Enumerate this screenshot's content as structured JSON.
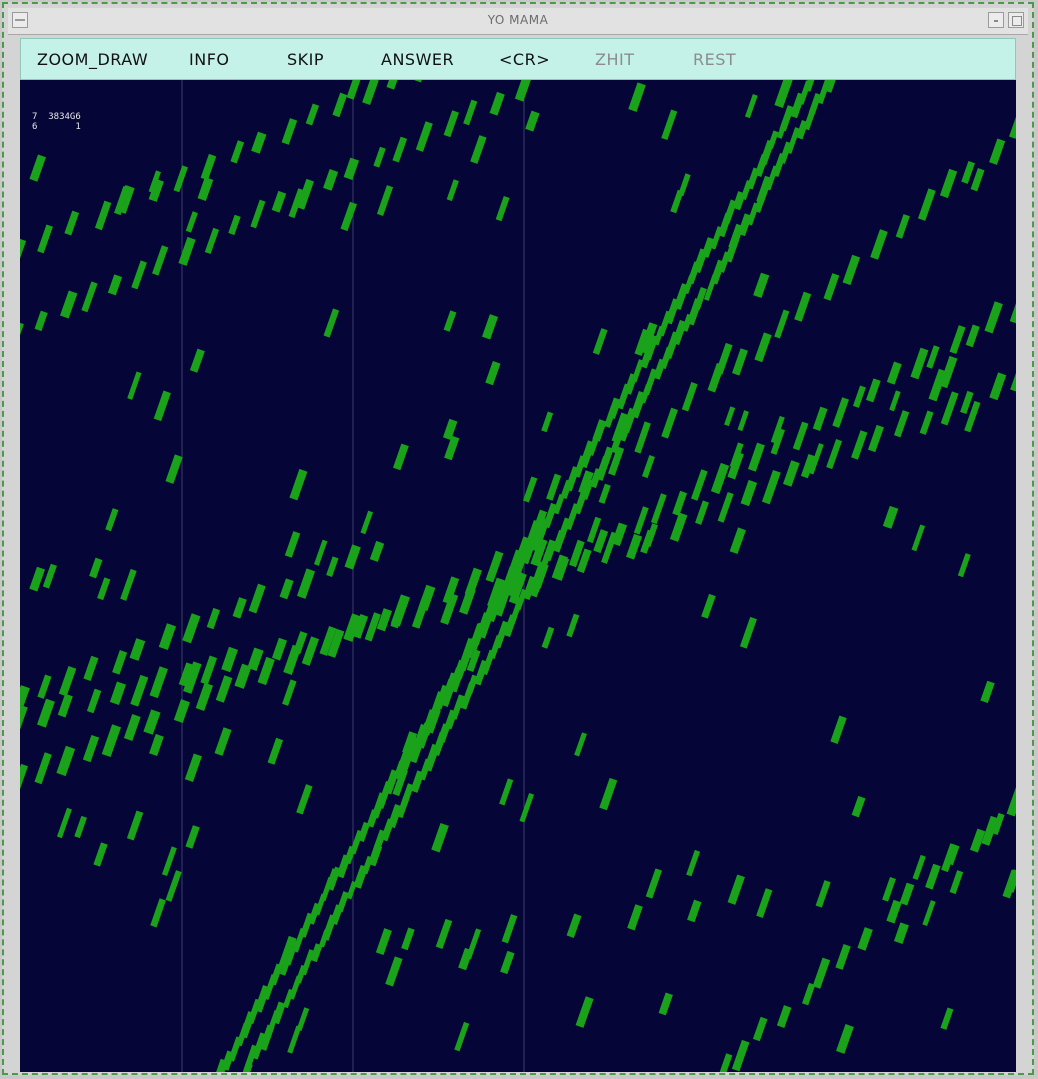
{
  "window": {
    "title": "YO MAMA"
  },
  "toolbar": {
    "buttons": [
      {
        "label": "ZOOM_DRAW",
        "enabled": true
      },
      {
        "label": "INFO",
        "enabled": true
      },
      {
        "label": "SKIP",
        "enabled": true
      },
      {
        "label": "ANSWER",
        "enabled": true
      },
      {
        "label": "<CR>",
        "enabled": true
      },
      {
        "label": "ZHIT",
        "enabled": false
      },
      {
        "label": "REST",
        "enabled": false
      }
    ]
  },
  "event_info": {
    "line1": "7  3834G6",
    "line2": "6       1"
  },
  "colors": {
    "background": "#050538",
    "hit": "#1aa31a",
    "toolbar": "#c4f2e8"
  }
}
